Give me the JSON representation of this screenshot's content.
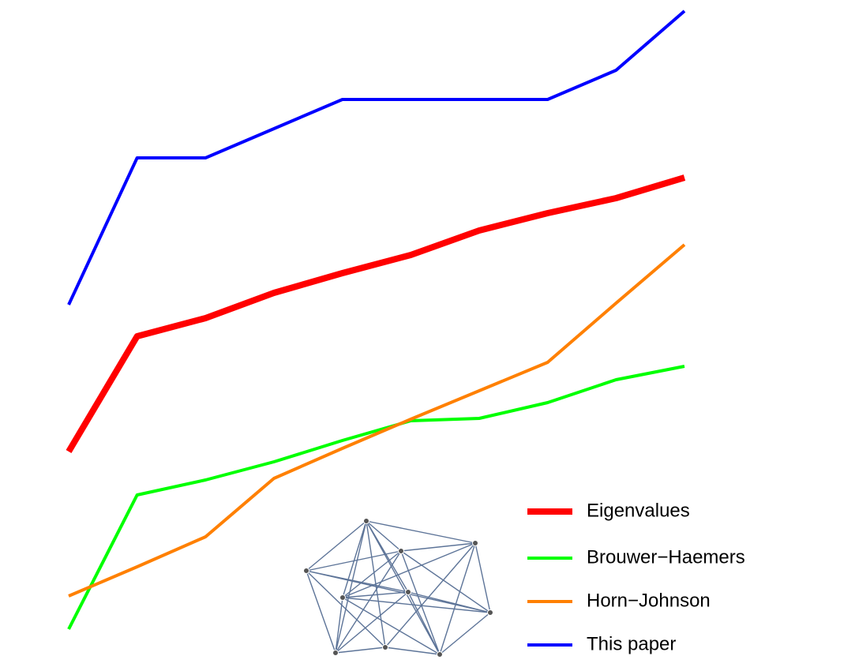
{
  "chart_data": {
    "type": "line",
    "x": [
      1,
      2,
      3,
      4,
      5,
      6,
      7,
      8,
      9,
      10
    ],
    "xlim": [
      1,
      10
    ],
    "ylim": [
      0,
      850
    ],
    "series": [
      {
        "name": "Eigenvalues",
        "color": "#ff0000",
        "line_width": 8,
        "values": [
          278,
          424,
          447,
          479,
          504,
          527,
          558,
          580,
          599,
          625
        ]
      },
      {
        "name": "Brouwer−Haemers",
        "color": "#00ff00",
        "line_width": 4,
        "values": [
          53,
          223,
          242,
          265,
          292,
          317,
          320,
          340,
          369,
          386
        ]
      },
      {
        "name": "Horn−Johnson",
        "color": "#ff8000",
        "line_width": 4,
        "values": [
          95,
          132,
          170,
          244,
          282,
          319,
          355,
          391,
          466,
          540
        ]
      },
      {
        "name": "This paper",
        "color": "#0000ff",
        "line_width": 4,
        "values": [
          464,
          650,
          650,
          687,
          724,
          724,
          724,
          724,
          761,
          836
        ]
      }
    ]
  }
}
